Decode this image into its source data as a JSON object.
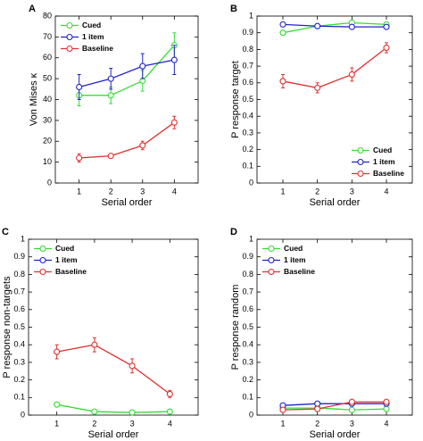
{
  "chart_data": [
    {
      "type": "line",
      "label": "A",
      "xlabel": "Serial order",
      "ylabel": "Von Mises κ",
      "x": [
        1,
        2,
        3,
        4
      ],
      "xlim": [
        0.25,
        4.75
      ],
      "xticks": [
        1,
        2,
        3,
        4
      ],
      "ylim": [
        0,
        80
      ],
      "yticks": [
        0,
        10,
        20,
        30,
        40,
        50,
        60,
        70,
        80
      ],
      "legend": "upper left",
      "series": [
        {
          "name": "Cued",
          "color": "#33dd33",
          "values": [
            42,
            42,
            49,
            66
          ],
          "errors": [
            5,
            4,
            5,
            6
          ]
        },
        {
          "name": "1 item",
          "color": "#2222cc",
          "values": [
            46,
            50,
            56,
            59
          ],
          "errors": [
            6,
            5,
            6,
            7
          ]
        },
        {
          "name": "Baseline",
          "color": "#e03030",
          "values": [
            12,
            13,
            18,
            29
          ],
          "errors": [
            2,
            1,
            2,
            3
          ]
        }
      ]
    },
    {
      "type": "line",
      "label": "B",
      "xlabel": "Serial order",
      "ylabel": "P response target",
      "x": [
        1,
        2,
        3,
        4
      ],
      "xlim": [
        0.25,
        4.75
      ],
      "xticks": [
        1,
        2,
        3,
        4
      ],
      "ylim": [
        0,
        1
      ],
      "yticks": [
        0,
        0.1,
        0.2,
        0.3,
        0.4,
        0.5,
        0.6,
        0.7,
        0.8,
        0.9,
        1
      ],
      "legend": "lower right",
      "series": [
        {
          "name": "Cued",
          "color": "#33dd33",
          "values": [
            0.9,
            0.94,
            0.96,
            0.95
          ],
          "errors": [
            0.01,
            0.01,
            0.01,
            0.01
          ]
        },
        {
          "name": "1 item",
          "color": "#2222cc",
          "values": [
            0.95,
            0.94,
            0.935,
            0.935
          ]
        },
        {
          "name": "Baseline",
          "color": "#e03030",
          "values": [
            0.61,
            0.57,
            0.65,
            0.81
          ],
          "errors": [
            0.04,
            0.03,
            0.04,
            0.03
          ]
        }
      ]
    },
    {
      "type": "line",
      "label": "C",
      "xlabel": "Serial order",
      "ylabel": "P response non-targets",
      "x": [
        1,
        2,
        3,
        4
      ],
      "xlim": [
        0.25,
        4.75
      ],
      "xticks": [
        1,
        2,
        3,
        4
      ],
      "ylim": [
        0,
        1
      ],
      "yticks": [
        0,
        0.1,
        0.2,
        0.3,
        0.4,
        0.5,
        0.6,
        0.7,
        0.8,
        0.9,
        1
      ],
      "legend": "upper left",
      "series": [
        {
          "name": "Cued",
          "color": "#33dd33",
          "values": [
            0.06,
            0.02,
            0.015,
            0.02
          ],
          "errors": [
            0.01,
            0.005,
            0.005,
            0.005
          ]
        },
        {
          "name": "1 item",
          "color": "#2222cc",
          "values": [
            null,
            null,
            null,
            null
          ]
        },
        {
          "name": "Baseline",
          "color": "#e03030",
          "values": [
            0.36,
            0.4,
            0.28,
            0.12
          ],
          "errors": [
            0.04,
            0.04,
            0.04,
            0.02
          ]
        }
      ]
    },
    {
      "type": "line",
      "label": "D",
      "xlabel": "Serial order",
      "ylabel": "P response random",
      "x": [
        1,
        2,
        3,
        4
      ],
      "xlim": [
        0.25,
        4.75
      ],
      "xticks": [
        1,
        2,
        3,
        4
      ],
      "ylim": [
        0,
        1
      ],
      "yticks": [
        0,
        0.1,
        0.2,
        0.3,
        0.4,
        0.5,
        0.6,
        0.7,
        0.8,
        0.9,
        1
      ],
      "legend": "upper left",
      "series": [
        {
          "name": "Cued",
          "color": "#33dd33",
          "values": [
            0.04,
            0.04,
            0.03,
            0.035
          ]
        },
        {
          "name": "1 item",
          "color": "#2222cc",
          "values": [
            0.055,
            0.065,
            0.065,
            0.065
          ]
        },
        {
          "name": "Baseline",
          "color": "#e03030",
          "values": [
            0.03,
            0.035,
            0.075,
            0.075
          ]
        }
      ]
    }
  ]
}
